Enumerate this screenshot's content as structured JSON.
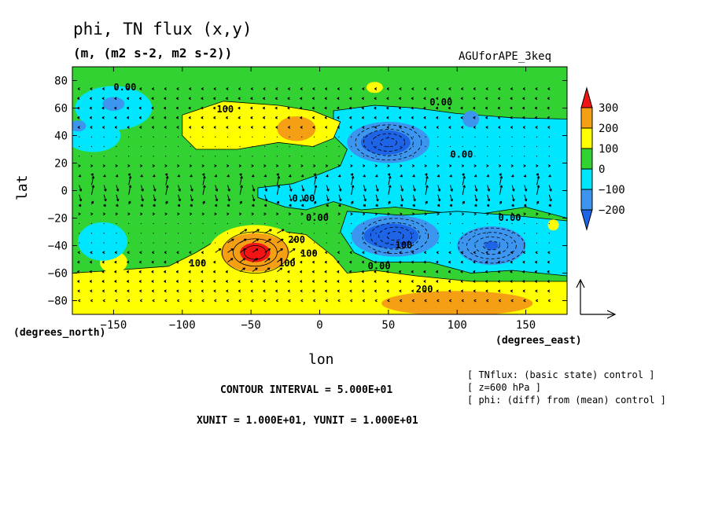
{
  "title": "phi, TN flux (x,y)",
  "subtitle": "(m, (m2 s-2, m2 s-2))",
  "run_name": "AGUforAPE_3keq",
  "notes": {
    "contour_interval": "CONTOUR INTERVAL = 5.000E+01",
    "units": "XUNIT = 1.000E+01, YUNIT = 1.000E+01"
  },
  "info_lines": [
    "[ TNflux: (basic state) control ]",
    "[ z=600 hPa ]",
    "[ phi: (diff) from (mean) control ]"
  ],
  "colors": {
    "below_-200": "#1e64e6",
    "-200_-100": "#3c96f0",
    "-100_0": "#00e6ff",
    "0_100": "#32d232",
    "100_200": "#ffff00",
    "200_300": "#f5a014",
    "above_300": "#f01414"
  },
  "chart_data": {
    "type": "contour+vector",
    "title": "phi, TN flux (x,y)",
    "subtitle": "(m, (m2 s-2, m2 s-2))",
    "xlabel": "lon",
    "ylabel": "lat",
    "x_unit_label": "(degrees_east)",
    "y_unit_label": "(degrees_north)",
    "xlim": [
      -180,
      180
    ],
    "ylim": [
      -90,
      90
    ],
    "xticks": [
      -150,
      -100,
      -50,
      0,
      50,
      100,
      150
    ],
    "yticks": [
      -80,
      -60,
      -40,
      -20,
      0,
      20,
      40,
      60,
      80
    ],
    "colorbar_levels": [
      -200,
      -100,
      0,
      100,
      200,
      300
    ],
    "contour_interval": 50,
    "contour_labels": [
      "0.00",
      "100",
      "0.00",
      "0.00",
      "0.00",
      "0.00",
      "100",
      "100",
      "200",
      "100",
      "0.00",
      "0.00",
      "100",
      "200"
    ],
    "features": [
      {
        "kind": "low",
        "lon": 50,
        "lat": 35,
        "value": -250
      },
      {
        "kind": "low",
        "lon": 55,
        "lat": -33,
        "value": -250
      },
      {
        "kind": "low",
        "lon": 125,
        "lat": -40,
        "value": -230
      },
      {
        "kind": "low",
        "lon": -150,
        "lat": 63,
        "value": -120
      },
      {
        "kind": "low",
        "lon": -175,
        "lat": 47,
        "value": -120
      },
      {
        "kind": "low",
        "lon": 110,
        "lat": 53,
        "value": -120
      },
      {
        "kind": "low",
        "lon": -158,
        "lat": -37,
        "value": -120
      },
      {
        "kind": "high",
        "lon": -47,
        "lat": -45,
        "value": 330
      },
      {
        "kind": "high",
        "lon": -17,
        "lat": 45,
        "value": 220
      },
      {
        "kind": "high",
        "lon": 85,
        "lat": -80,
        "value": 220
      },
      {
        "kind": "high",
        "lon": -75,
        "lat": 50,
        "value": 150
      },
      {
        "kind": "high",
        "lon": -150,
        "lat": -52,
        "value": 130
      }
    ],
    "reference_vector": {
      "x": 10,
      "y": 10
    }
  }
}
